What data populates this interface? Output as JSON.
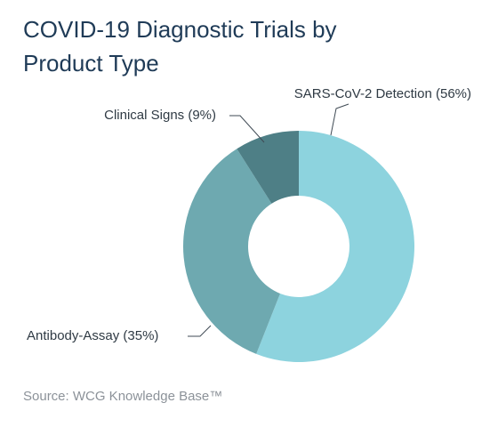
{
  "title": "COVID-19 Diagnostic Trials by Product Type",
  "source": "Source: WCG Knowledge Base™",
  "chart_data": {
    "type": "pie",
    "style": "donut",
    "title": "COVID-19 Diagnostic Trials by Product Type",
    "legend": "none",
    "slices": [
      {
        "label": "SARS-CoV-2 Detection (56%)",
        "value": 56,
        "color": "#8dd3de"
      },
      {
        "label": "Antibody-Assay (35%)",
        "value": 35,
        "color": "#6ea9b0"
      },
      {
        "label": "Clinical Signs (9%)",
        "value": 9,
        "color": "#4e7f86"
      }
    ]
  }
}
